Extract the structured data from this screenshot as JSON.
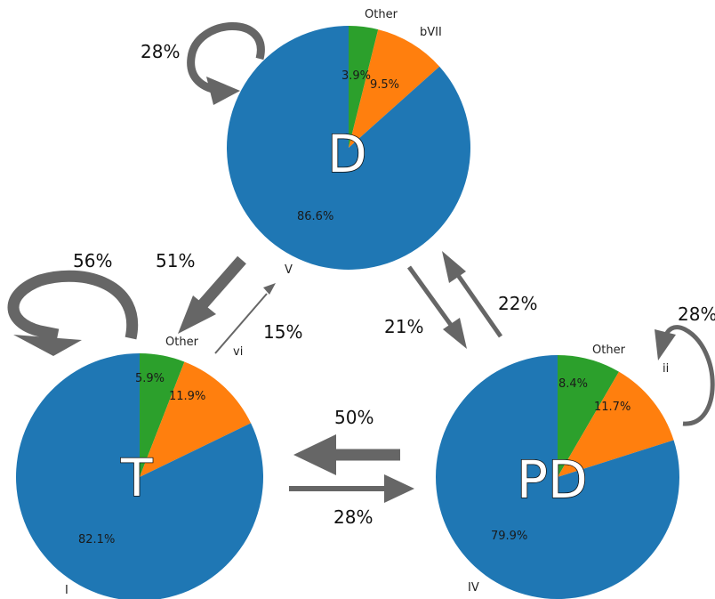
{
  "colors": {
    "main_slice": "#1f77b4",
    "second_slice": "#ff7f0e",
    "other_slice": "#2ca02c",
    "arrow": "#666666"
  },
  "nodes": {
    "D": {
      "letter": "D",
      "slices": [
        {
          "category": "Other",
          "percent": 3.9,
          "label": "3.9%"
        },
        {
          "category": "bVII",
          "percent": 9.5,
          "label": "9.5%"
        },
        {
          "category": "V",
          "percent": 86.6,
          "label": "86.6%"
        }
      ]
    },
    "T": {
      "letter": "T",
      "slices": [
        {
          "category": "Other",
          "percent": 5.9,
          "label": "5.9%"
        },
        {
          "category": "vi",
          "percent": 11.9,
          "label": "11.9%"
        },
        {
          "category": "I",
          "percent": 82.1,
          "label": "82.1%"
        }
      ]
    },
    "PD": {
      "letter": "PD",
      "slices": [
        {
          "category": "Other",
          "percent": 8.4,
          "label": "8.4%"
        },
        {
          "category": "ii",
          "percent": 11.7,
          "label": "11.7%"
        },
        {
          "category": "IV",
          "percent": 79.9,
          "label": "79.9%"
        }
      ]
    }
  },
  "transitions": {
    "D_self": {
      "label": "28%",
      "probability": 0.28
    },
    "T_self": {
      "label": "56%",
      "probability": 0.56
    },
    "PD_self": {
      "label": "28%",
      "probability": 0.28
    },
    "D_to_T": {
      "label": "51%",
      "probability": 0.51
    },
    "T_to_D": {
      "label": "15%",
      "probability": 0.15
    },
    "D_to_PD": {
      "label": "21%",
      "probability": 0.21
    },
    "PD_to_D": {
      "label": "22%",
      "probability": 0.22
    },
    "PD_to_T": {
      "label": "50%",
      "probability": 0.5
    },
    "T_to_PD": {
      "label": "28%",
      "probability": 0.28
    }
  }
}
